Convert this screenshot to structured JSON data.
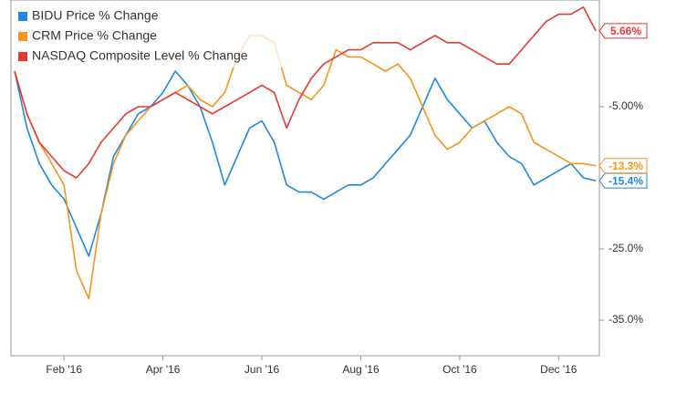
{
  "chart_data": {
    "type": "line",
    "categories": [
      null,
      null,
      null,
      null,
      "Feb '16",
      null,
      null,
      null,
      null,
      null,
      null,
      null,
      "Apr '16",
      null,
      null,
      null,
      null,
      null,
      null,
      null,
      "Jun '16",
      null,
      null,
      null,
      null,
      null,
      null,
      null,
      "Aug '16",
      null,
      null,
      null,
      null,
      null,
      null,
      null,
      "Oct '16",
      null,
      null,
      null,
      null,
      null,
      null,
      null,
      "Dec '16",
      null,
      null,
      null
    ],
    "series": [
      {
        "name": "BIDU Price % Change",
        "color": "#1e88e5",
        "end_label": "-15.4%",
        "values": [
          0,
          -8,
          -13,
          -16,
          -18,
          -22,
          -26,
          -20,
          -12,
          -9,
          -6,
          -5,
          -3,
          0,
          -2,
          -5,
          -10,
          -16,
          -12,
          -8,
          -7,
          -10,
          -16,
          -17,
          -17,
          -18,
          -17,
          -16,
          -16,
          -15,
          -13,
          -11,
          -9,
          -5,
          -1,
          -4,
          -6,
          -8,
          -7,
          -10,
          -12,
          -13,
          -16,
          -15,
          -14,
          -13,
          -15,
          -15.4
        ]
      },
      {
        "name": "CRM Price % Change",
        "color": "#f7941d",
        "end_label": "-13.3%",
        "values": [
          0,
          -6,
          -10,
          -13,
          -16,
          -28,
          -32,
          -20,
          -13,
          -9,
          -7,
          -5,
          -4,
          -3,
          -2,
          -4,
          -5,
          -3,
          2,
          5,
          5,
          4,
          -2,
          -3,
          -4,
          -2,
          3,
          2,
          2,
          1,
          0,
          1,
          -1,
          -5,
          -9,
          -11,
          -10,
          -8,
          -7,
          -6,
          -5,
          -6,
          -10,
          -11,
          -12,
          -13,
          -13,
          -13.3
        ]
      },
      {
        "name": "NASDAQ Composite Level % Change",
        "color": "#e53935",
        "end_label": "5.66%",
        "values": [
          0,
          -6,
          -10,
          -12,
          -14,
          -15,
          -13,
          -10,
          -8,
          -6,
          -5,
          -5,
          -4,
          -3,
          -4,
          -5,
          -6,
          -5,
          -4,
          -3,
          -2,
          -3,
          -8,
          -4,
          -1,
          1,
          2,
          3,
          3,
          4,
          4,
          4,
          3,
          4,
          5,
          4,
          4,
          3,
          2,
          1,
          1,
          3,
          5,
          7,
          8,
          8,
          9,
          5.66
        ]
      }
    ],
    "ylim": [
      -40,
      10
    ],
    "yticks": [
      {
        "value": -5,
        "label": "-5.00%"
      },
      {
        "value": -25,
        "label": "-25.0%"
      },
      {
        "value": -35,
        "label": "-35.0%"
      }
    ],
    "grid": false,
    "legend": "top-left"
  }
}
